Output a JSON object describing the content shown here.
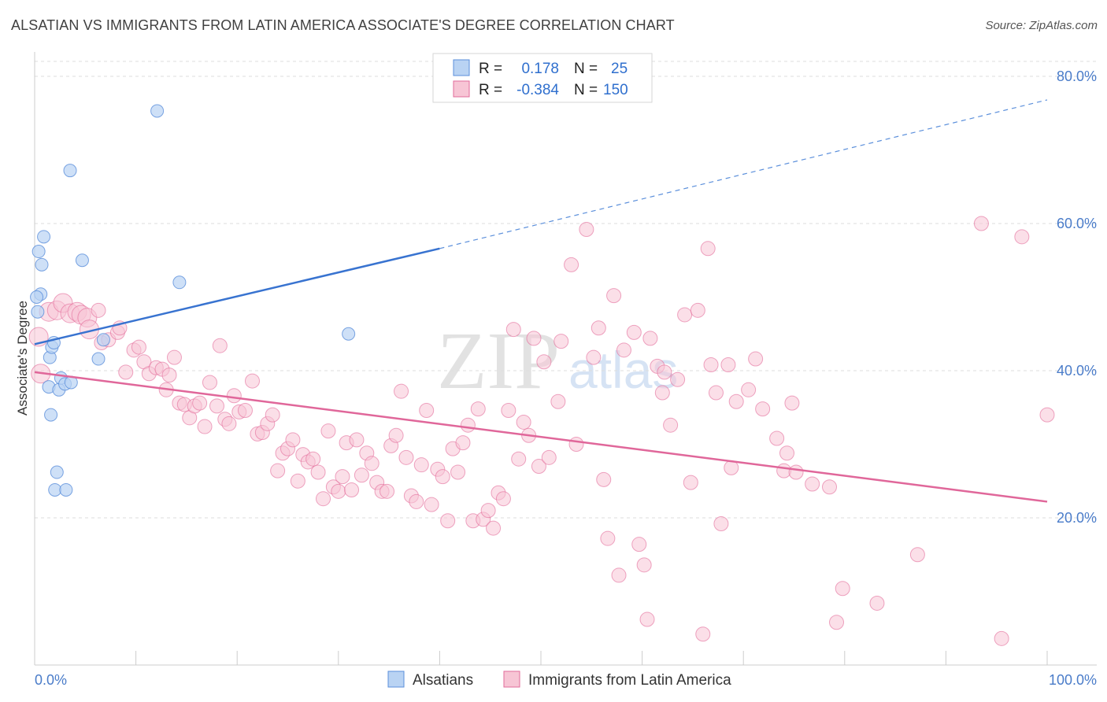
{
  "header": {
    "title": "ALSATIAN VS IMMIGRANTS FROM LATIN AMERICA ASSOCIATE'S DEGREE CORRELATION CHART",
    "source": "Source: ZipAtlas.com"
  },
  "watermark": {
    "zip": "ZIP",
    "atlas": "atlas"
  },
  "colors": {
    "blue": "#5b8fdb",
    "blue_fill": "#b9d3f3",
    "pink": "#e26b9a",
    "pink_fill": "#f7c5d5",
    "label": "#4a7cc9",
    "grid": "#dcdcdc"
  },
  "legend_top": {
    "row1": {
      "r_label": "R =",
      "r_value": "0.178",
      "n_label": "N =",
      "n_value": "25"
    },
    "row2": {
      "r_label": "R =",
      "r_value": "-0.384",
      "n_label": "N =",
      "n_value": "150"
    }
  },
  "chart_data": {
    "type": "scatter",
    "title": "ALSATIAN VS IMMIGRANTS FROM LATIN AMERICA ASSOCIATE'S DEGREE CORRELATION CHART",
    "xlabel": "",
    "ylabel": "Associate's Degree",
    "xlim": [
      0,
      100
    ],
    "ylim": [
      0,
      82
    ],
    "x_tick_labels": [
      "0.0%",
      "100.0%"
    ],
    "y_ticks": [
      20,
      40,
      60,
      80
    ],
    "y_tick_labels": [
      "20.0%",
      "40.0%",
      "60.0%",
      "80.0%"
    ],
    "grid": true,
    "series": [
      {
        "name": "Alsatians",
        "color": "#5b8fdb",
        "r": 0.178,
        "n": 25,
        "trend": {
          "x0": 0,
          "y0": 43.6,
          "x1": 40,
          "y1": 56.6,
          "dashed_to_x": 100,
          "dashed_to_y": 76.8
        },
        "points": [
          [
            0.3,
            48.0
          ],
          [
            0.6,
            50.4
          ],
          [
            0.4,
            56.2
          ],
          [
            0.7,
            54.4
          ],
          [
            0.9,
            58.2
          ],
          [
            1.4,
            37.8
          ],
          [
            1.6,
            34.0
          ],
          [
            1.5,
            41.8
          ],
          [
            1.7,
            43.2
          ],
          [
            1.9,
            43.8
          ],
          [
            2.2,
            26.2
          ],
          [
            2.0,
            23.8
          ],
          [
            2.4,
            37.4
          ],
          [
            2.6,
            39.0
          ],
          [
            3.0,
            38.2
          ],
          [
            3.1,
            23.8
          ],
          [
            3.6,
            38.4
          ],
          [
            3.5,
            67.2
          ],
          [
            4.7,
            55.0
          ],
          [
            6.3,
            41.6
          ],
          [
            6.8,
            44.2
          ],
          [
            12.1,
            75.3
          ],
          [
            14.3,
            52.0
          ],
          [
            31.0,
            45.0
          ],
          [
            0.2,
            50.0
          ]
        ]
      },
      {
        "name": "Immigrants from Latin America",
        "color": "#e26b9a",
        "r": -0.384,
        "n": 150,
        "trend": {
          "x0": 0,
          "y0": 39.8,
          "x1": 100,
          "y1": 22.2
        },
        "points": [
          [
            0.4,
            44.6
          ],
          [
            0.6,
            39.6
          ],
          [
            1.4,
            48.0
          ],
          [
            2.2,
            48.2
          ],
          [
            2.8,
            49.2
          ],
          [
            3.5,
            47.8
          ],
          [
            4.2,
            48.0
          ],
          [
            4.6,
            47.6
          ],
          [
            5.2,
            47.2
          ],
          [
            5.4,
            45.6
          ],
          [
            6.3,
            48.2
          ],
          [
            6.6,
            43.8
          ],
          [
            7.3,
            44.2
          ],
          [
            8.2,
            45.2
          ],
          [
            8.4,
            45.8
          ],
          [
            9.0,
            39.8
          ],
          [
            9.8,
            42.8
          ],
          [
            10.3,
            43.2
          ],
          [
            10.8,
            41.2
          ],
          [
            11.3,
            39.6
          ],
          [
            12.0,
            40.4
          ],
          [
            12.6,
            40.2
          ],
          [
            13.0,
            37.4
          ],
          [
            13.3,
            39.4
          ],
          [
            13.8,
            41.8
          ],
          [
            14.3,
            35.6
          ],
          [
            14.8,
            35.4
          ],
          [
            15.3,
            33.6
          ],
          [
            15.8,
            35.2
          ],
          [
            16.3,
            35.6
          ],
          [
            16.8,
            32.4
          ],
          [
            17.3,
            38.4
          ],
          [
            18.0,
            35.2
          ],
          [
            18.3,
            43.4
          ],
          [
            18.8,
            33.4
          ],
          [
            19.2,
            32.8
          ],
          [
            19.7,
            36.6
          ],
          [
            20.2,
            34.4
          ],
          [
            20.8,
            34.6
          ],
          [
            21.5,
            38.6
          ],
          [
            22.0,
            31.4
          ],
          [
            22.5,
            31.6
          ],
          [
            23.0,
            32.8
          ],
          [
            23.5,
            34.0
          ],
          [
            24.0,
            26.4
          ],
          [
            24.5,
            28.8
          ],
          [
            25.0,
            29.4
          ],
          [
            25.5,
            30.6
          ],
          [
            26.0,
            25.0
          ],
          [
            26.5,
            28.6
          ],
          [
            27.0,
            27.6
          ],
          [
            27.5,
            28.0
          ],
          [
            28.0,
            26.2
          ],
          [
            28.5,
            22.6
          ],
          [
            29.0,
            31.8
          ],
          [
            29.5,
            24.2
          ],
          [
            30.0,
            23.6
          ],
          [
            30.4,
            25.6
          ],
          [
            30.8,
            30.2
          ],
          [
            31.3,
            23.8
          ],
          [
            31.8,
            30.6
          ],
          [
            32.3,
            25.8
          ],
          [
            32.8,
            28.8
          ],
          [
            33.3,
            27.4
          ],
          [
            33.8,
            24.8
          ],
          [
            34.3,
            23.6
          ],
          [
            34.8,
            23.6
          ],
          [
            35.2,
            29.8
          ],
          [
            35.7,
            31.2
          ],
          [
            36.2,
            37.2
          ],
          [
            36.7,
            28.2
          ],
          [
            37.2,
            23.0
          ],
          [
            37.7,
            22.2
          ],
          [
            38.2,
            27.2
          ],
          [
            38.7,
            34.6
          ],
          [
            39.2,
            21.8
          ],
          [
            39.8,
            26.6
          ],
          [
            40.3,
            25.6
          ],
          [
            40.8,
            19.6
          ],
          [
            41.3,
            29.4
          ],
          [
            41.8,
            26.2
          ],
          [
            42.3,
            30.2
          ],
          [
            42.8,
            32.6
          ],
          [
            43.3,
            19.6
          ],
          [
            43.8,
            34.8
          ],
          [
            44.3,
            19.8
          ],
          [
            44.8,
            21.0
          ],
          [
            45.3,
            18.6
          ],
          [
            45.8,
            23.4
          ],
          [
            46.3,
            22.6
          ],
          [
            46.8,
            34.6
          ],
          [
            47.3,
            45.6
          ],
          [
            47.8,
            28.0
          ],
          [
            48.3,
            33.0
          ],
          [
            48.8,
            31.2
          ],
          [
            49.3,
            44.4
          ],
          [
            49.8,
            27.0
          ],
          [
            50.3,
            41.2
          ],
          [
            50.8,
            28.2
          ],
          [
            51.7,
            35.8
          ],
          [
            52.0,
            44.0
          ],
          [
            53.0,
            54.4
          ],
          [
            53.5,
            30.0
          ],
          [
            54.5,
            59.2
          ],
          [
            55.2,
            41.8
          ],
          [
            55.7,
            45.8
          ],
          [
            56.2,
            25.2
          ],
          [
            56.6,
            17.2
          ],
          [
            57.2,
            50.2
          ],
          [
            57.7,
            12.2
          ],
          [
            58.2,
            42.8
          ],
          [
            59.2,
            45.2
          ],
          [
            59.7,
            16.4
          ],
          [
            60.2,
            13.6
          ],
          [
            60.5,
            6.2
          ],
          [
            60.8,
            44.4
          ],
          [
            61.5,
            40.6
          ],
          [
            62.0,
            37.0
          ],
          [
            62.2,
            39.8
          ],
          [
            62.8,
            32.6
          ],
          [
            63.5,
            38.8
          ],
          [
            64.2,
            47.6
          ],
          [
            64.8,
            24.8
          ],
          [
            65.5,
            48.2
          ],
          [
            66.0,
            4.2
          ],
          [
            66.5,
            56.6
          ],
          [
            66.8,
            40.8
          ],
          [
            67.3,
            37.0
          ],
          [
            67.8,
            19.2
          ],
          [
            68.5,
            40.8
          ],
          [
            68.8,
            26.8
          ],
          [
            69.3,
            35.8
          ],
          [
            70.5,
            37.4
          ],
          [
            71.2,
            41.6
          ],
          [
            71.9,
            34.8
          ],
          [
            73.3,
            30.8
          ],
          [
            74.0,
            26.4
          ],
          [
            74.3,
            28.8
          ],
          [
            74.8,
            35.6
          ],
          [
            75.2,
            26.2
          ],
          [
            76.8,
            24.6
          ],
          [
            78.5,
            24.2
          ],
          [
            79.2,
            5.8
          ],
          [
            79.8,
            10.4
          ],
          [
            83.2,
            8.4
          ],
          [
            87.2,
            15.0
          ],
          [
            100.0,
            34.0
          ],
          [
            93.5,
            60.0
          ],
          [
            95.5,
            3.6
          ],
          [
            97.5,
            58.2
          ]
        ]
      }
    ],
    "legend": [
      "Alsatians",
      "Immigrants from Latin America"
    ],
    "legend_placement": "bottom-center"
  }
}
